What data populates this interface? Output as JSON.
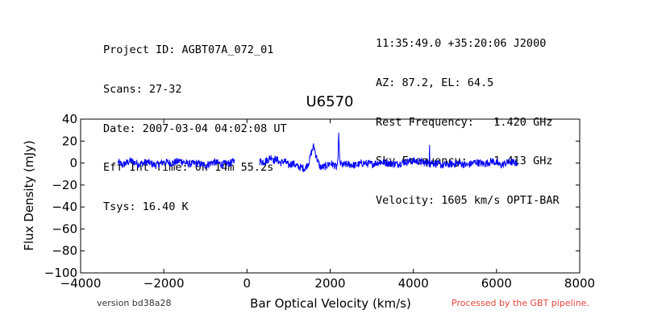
{
  "header": {
    "left": [
      "Project ID: AGBT07A_072_01",
      "Scans: 27-32",
      "Date: 2007-03-04 04:02:08 UT",
      "Eff Int Time: 0h 14m 55.2s",
      "Tsys: 16.40 K"
    ],
    "right": [
      "11:35:49.0 +35:20:06 J2000",
      "AZ: 87.2, EL: 64.5",
      "Rest Frequency:   1.420 GHz",
      "Sky Frequency:    1.413 GHz",
      "Velocity: 1605 km/s OPTI-BAR"
    ]
  },
  "footer": {
    "version": "version bd38a28",
    "processed": "Processed by the GBT pipeline.",
    "processed_color": "#e8443a"
  },
  "chart_data": {
    "type": "line",
    "title": "U6570",
    "xlabel": "Bar Optical Velocity (km/s)",
    "ylabel": "Flux Density (mJy)",
    "xlim": [
      -4000,
      8000
    ],
    "ylim": [
      -100,
      40
    ],
    "xticks": [
      -4000,
      -2000,
      0,
      2000,
      4000,
      6000,
      8000
    ],
    "xtick_labels": [
      "−4000",
      "−2000",
      "0",
      "2000",
      "4000",
      "6000",
      "8000"
    ],
    "yticks": [
      40,
      20,
      0,
      -20,
      -40,
      -60,
      -80,
      -100
    ],
    "ytick_labels": [
      "40",
      "20",
      "0",
      "−20",
      "−40",
      "−60",
      "−80",
      "−100"
    ],
    "grid": false,
    "line_color": "#0000ff",
    "series": [
      {
        "segments": [
          {
            "x": [
              -3100,
              -3000,
              -2800,
              -2600,
              -2400,
              -2200,
              -2000,
              -1800,
              -1600,
              -1400,
              -1200,
              -1000,
              -800,
              -600,
              -400,
              -300
            ],
            "y": [
              1,
              -2,
              2,
              -1,
              1,
              -2,
              1,
              0,
              2,
              -1,
              0,
              -2,
              1,
              -1,
              0,
              2
            ]
          },
          {
            "x": [
              300,
              400,
              500,
              600,
              650,
              700,
              800,
              900,
              1000,
              1100,
              1200,
              1300,
              1400,
              1500,
              1550,
              1600,
              1620,
              1650,
              1700,
              1750,
              1800,
              1900,
              2000,
              2100,
              2150,
              2190,
              2200,
              2210,
              2230,
              2300,
              2400,
              2600,
              2800,
              3000,
              3200,
              3400,
              3600,
              3800,
              4000,
              4200,
              4300,
              4350,
              4380,
              4390,
              4400,
              4420,
              4500,
              4700,
              4900,
              5100,
              5300,
              5500,
              5700,
              5900,
              6100,
              6300,
              6500
            ],
            "y": [
              2,
              1,
              3,
              6,
              2,
              4,
              0,
              2,
              -2,
              0,
              -3,
              -4,
              -5,
              2,
              10,
              15,
              14,
              8,
              2,
              -3,
              -4,
              -3,
              0,
              -2,
              -4,
              1,
              25,
              24,
              0,
              -2,
              -1,
              -2,
              0,
              -1,
              1,
              0,
              -1,
              1,
              2,
              1,
              0,
              2,
              -4,
              20,
              -2,
              1,
              0,
              -2,
              -1,
              0,
              -2,
              1,
              -1,
              2,
              -2,
              1,
              0
            ]
          }
        ]
      }
    ]
  }
}
